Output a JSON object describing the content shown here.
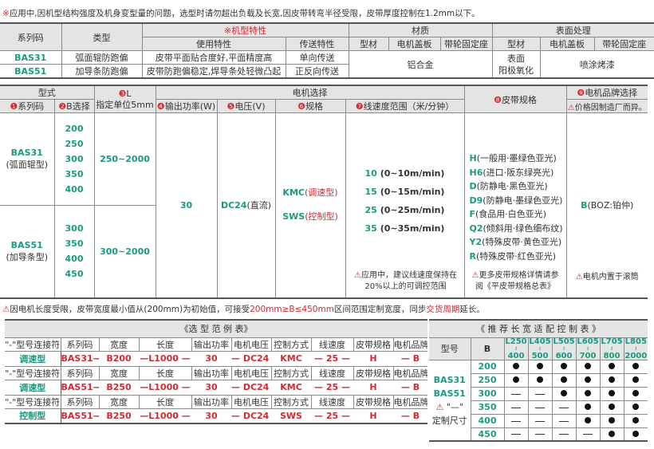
{
  "top_note": {
    "mark": "※",
    "text": "应用中,因机型结构强度及机身变型量的问题，选型时请勿超出负载及长宽,因皮带转弯半径受限，皮带厚度控制在1.2mm以下。"
  },
  "spec_table": {
    "h_series": "系列码",
    "h_type": "类型",
    "h_features": "※机型特性",
    "h_usage": "使用特性",
    "h_transfer": "传送特性",
    "h_material": "材质",
    "h_surface": "表面处理",
    "sub": [
      "型材",
      "电机盖板",
      "带轮固定座",
      "型材",
      "电机盖板",
      "带轮固定座"
    ],
    "rows": [
      {
        "series": "BAS31",
        "type": "弧面辊防跑偏",
        "usage": "皮带平面贴合度好,平面精度高",
        "transfer": "单向传送"
      },
      {
        "series": "BAS51",
        "type": "加导条防跑偏",
        "usage": "皮带防跑偏稳定,焊导条处轻微凸起",
        "transfer": "正反向传送"
      }
    ],
    "material": "铝合金",
    "surface_profile": "表面\n阳极氧化",
    "surface_other": "喷涂烤漆"
  },
  "select_table": {
    "h_model": "型式",
    "h_L_num": "❸",
    "h_L": "L",
    "h_L_unit": "指定单位5mm",
    "h_motor": "电机选择",
    "h_series": "系列码",
    "h_B": "B选择",
    "h_power": "输出功率(W)",
    "h_voltage": "电压(V)",
    "h_spec": "规格",
    "h_speed": "线速度范围（米/分钟）",
    "h_belt": "皮带规格",
    "h_brand": "电机品牌选择",
    "h_brand_note": "价格因制造厂而异。",
    "nums": [
      "❶",
      "❷",
      "❹",
      "❺",
      "❻",
      "❼",
      "❽",
      "❾"
    ],
    "bas31": {
      "series": "BAS31",
      "sub": "(弧面辊型)",
      "B": [
        "200",
        "250",
        "300",
        "350",
        "400"
      ],
      "L": "250~2000"
    },
    "bas51": {
      "series": "BAS51",
      "sub": "(加导条型)",
      "B": [
        "300",
        "350",
        "400",
        "450"
      ],
      "L": "300~2000"
    },
    "power": "30",
    "voltage": "DC24",
    "voltage_sub": "(直流)",
    "specs": [
      {
        "code": "KMC",
        "desc": "(调速型)"
      },
      {
        "code": "SWS",
        "desc": "(控制型)"
      }
    ],
    "speeds": [
      {
        "code": "10",
        "range": "(0~10m/min)"
      },
      {
        "code": "15",
        "range": "(0~15m/min)"
      },
      {
        "code": "25",
        "range": "(0~25m/min)"
      },
      {
        "code": "35",
        "range": "(0~35m/min)"
      }
    ],
    "speed_note": "应用中，建议线速度保持在20%以上的可调控范围",
    "belts": [
      {
        "code": "H",
        "desc": "(一般用·墨绿色亚光)"
      },
      {
        "code": "H6",
        "desc": "(进口·阪东绿亮光)"
      },
      {
        "code": "D",
        "desc": "(防静电·黑色亚光)"
      },
      {
        "code": "D9",
        "desc": "(防静电·墨绿色亚光)"
      },
      {
        "code": "F",
        "desc": "(食品用·白色亚光)"
      },
      {
        "code": "Q2",
        "desc": "(倾斜用·绿色细布纹)"
      },
      {
        "code": "Y2",
        "desc": "(特殊皮带·黄色亚光)"
      },
      {
        "code": "R",
        "desc": "(特殊皮带·红色亚光)"
      }
    ],
    "belt_note": "更多皮带规格详情请参阅《平皮带规格总表》",
    "brand": {
      "code": "B",
      "desc": "(BOZ:铂仲)"
    },
    "brand_note": "电机内置于滚筒"
  },
  "mid_note": {
    "a": "因电机长度受限，皮带宽度最小值从(200mm)为初始值，可接受",
    "b": "200mm≥B≤450mm",
    "c": "区间范围定制宽度，同步",
    "d": "交货周期",
    "e": "延长。"
  },
  "example_table": {
    "title": "《选 型 范 例 表》",
    "headers": [
      "\"-\"型号连接符",
      "系列码",
      "宽度",
      "长度",
      "输出功率",
      "电机电压",
      "控制方式",
      "线速度",
      "皮带规格",
      "电机品牌"
    ],
    "rows": [
      {
        "label": "调速型",
        "values": [
          "BAS31—",
          "B200",
          "—L1000 —",
          "30",
          "— DC24 —",
          "KMC",
          "—  25  —",
          "H",
          "—  B"
        ]
      },
      {
        "label": "调速型",
        "values": [
          "BAS51—",
          "B250",
          "—L1000 —",
          "30",
          "— DC24 —",
          "KMC",
          "—  25  —",
          "H",
          "—  B"
        ]
      },
      {
        "label": "控制型",
        "values": [
          "BAS51—",
          "B250",
          "—L1000 —",
          "30",
          "— DC24 —",
          "SWS",
          "—  25  —",
          "H",
          "—  B"
        ]
      }
    ]
  },
  "matrix_table": {
    "title": "《 推 荐 长 宽 适 配 控 制 表 》",
    "h_model": "型号",
    "h_B": "B",
    "L_ranges": [
      [
        "L250",
        "400"
      ],
      [
        "L405",
        "500"
      ],
      [
        "L505",
        "600"
      ],
      [
        "L605",
        "700"
      ],
      [
        "L705",
        "800"
      ],
      [
        "L805",
        "2000"
      ]
    ],
    "models": [
      "BAS31",
      "BAS51"
    ],
    "legend_mark": "\"—\"",
    "legend_text": "定制尺寸",
    "B_values": [
      "200",
      "250",
      "300",
      "350",
      "400",
      "450"
    ],
    "availability": [
      [
        1,
        1,
        1,
        1,
        1,
        1
      ],
      [
        1,
        1,
        1,
        1,
        1,
        1
      ],
      [
        0,
        0,
        1,
        1,
        1,
        1
      ],
      [
        0,
        0,
        0,
        1,
        1,
        1
      ],
      [
        0,
        0,
        0,
        1,
        1,
        1
      ],
      [
        0,
        0,
        0,
        0,
        1,
        1
      ]
    ]
  },
  "colors": {
    "accent_green": "#1a9a7e",
    "accent_red": "#d7282f",
    "header_gray": "#e4e4e4"
  }
}
